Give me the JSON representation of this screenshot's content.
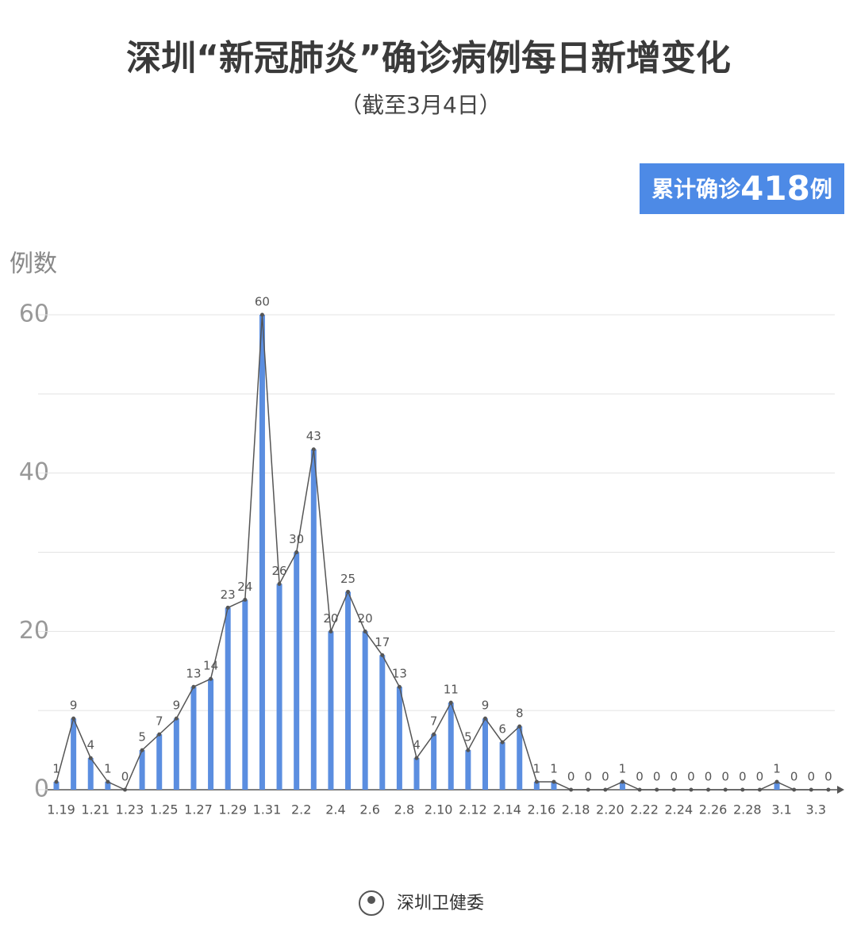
{
  "chart_data": {
    "type": "bar-line",
    "title": "深圳“新冠肺炎”确诊病例每日新增变化",
    "subtitle": "（截至3月4日）",
    "badge": {
      "prefix": "累计确诊",
      "number": "418",
      "suffix": "例"
    },
    "y_label": "例数",
    "source": "深圳卫健委",
    "categories": [
      "1.19",
      null,
      "1.21",
      null,
      "1.23",
      null,
      "1.25",
      null,
      "1.27",
      null,
      "1.29",
      null,
      "1.31",
      null,
      "2.2",
      null,
      "2.4",
      null,
      "2.6",
      null,
      "2.8",
      null,
      "2.10",
      null,
      "2.12",
      null,
      "2.14",
      null,
      "2.16",
      null,
      "2.18",
      null,
      "2.20",
      null,
      "2.22",
      null,
      "2.24",
      null,
      "2.26",
      null,
      "2.28",
      null,
      "3.1",
      null,
      "3.3",
      null
    ],
    "values": [
      1,
      9,
      4,
      1,
      0,
      5,
      7,
      9,
      13,
      14,
      23,
      24,
      60,
      26,
      30,
      43,
      20,
      25,
      20,
      17,
      13,
      4,
      7,
      11,
      5,
      9,
      6,
      8,
      1,
      1,
      0,
      0,
      0,
      1,
      0,
      0,
      0,
      0,
      0,
      0,
      0,
      0,
      1,
      0,
      0,
      0
    ],
    "color": "#5b8ee0",
    "line_color": "#555555",
    "ylim": [
      0,
      60
    ],
    "yticks": [
      0,
      20,
      40,
      60
    ],
    "minor_yticks": [
      10,
      30,
      50
    ],
    "grid": true
  }
}
